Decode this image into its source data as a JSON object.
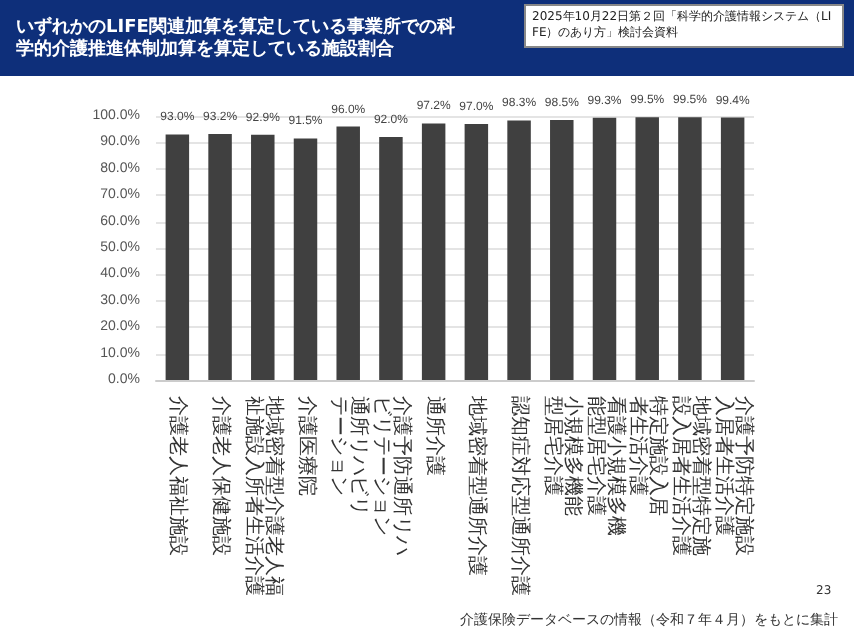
{
  "chart_data": {
    "type": "bar",
    "title": "いずれかのLIFE関連加算を算定している事業所での科学的介護推進体制加算を算定している施設割合",
    "categories": [
      "介護老人福祉施設",
      "介護老人保健施設",
      "地域密着型介護老人福祉施設入所者生活介護",
      "介護医療院",
      "通所リハビリテーション",
      "介護予防通所リハビリテーション",
      "通所介護",
      "地域密着型通所介護",
      "認知症対応型通所介護",
      "小規模多機能型居宅介護",
      "看護小規模多機能型居宅介護",
      "特定施設入居者生活介護",
      "地域密着型特定施設入居者生活介護",
      "介護予防特定施設入居者生活介護"
    ],
    "values": [
      93.0,
      93.2,
      92.9,
      91.5,
      96.0,
      92.0,
      97.2,
      97.0,
      98.3,
      98.5,
      99.3,
      99.5,
      99.5,
      99.4
    ],
    "value_labels": [
      "93.0%",
      "93.2%",
      "92.9%",
      "91.5%",
      "96.0%",
      "92.0%",
      "97.2%",
      "97.0%",
      "98.3%",
      "98.5%",
      "99.3%",
      "99.5%",
      "99.5%",
      "99.4%"
    ],
    "color": "#404040",
    "ylim": [
      0,
      100
    ],
    "yticks": [
      {
        "value": 0,
        "label": "0.0%"
      },
      {
        "value": 10,
        "label": "10.0%"
      },
      {
        "value": 20,
        "label": "20.0%"
      },
      {
        "value": 30,
        "label": "30.0%"
      },
      {
        "value": 40,
        "label": "40.0%"
      },
      {
        "value": 50,
        "label": "50.0%"
      },
      {
        "value": 60,
        "label": "60.0%"
      },
      {
        "value": 70,
        "label": "70.0%"
      },
      {
        "value": 80,
        "label": "80.0%"
      },
      {
        "value": 90,
        "label": "90.0%"
      },
      {
        "value": 100,
        "label": "100.0%"
      }
    ],
    "grid": "y",
    "annotations": [
      "2025年10月22日第２回「科学的介護情報システム（LIFE）のあり方」検討会資料",
      "介護保険データベースの情報（令和７年４月）をもとに集計",
      "23"
    ]
  }
}
